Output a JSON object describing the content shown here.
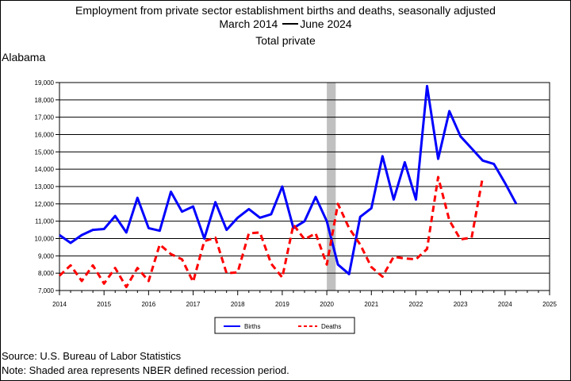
{
  "title": {
    "line1": "Employment from private sector establishment births and deaths, seasonally adjusted",
    "line2_start": "March 2014",
    "line2_end": "June 2024",
    "line3": "Total private"
  },
  "state": "Alabama",
  "footer": {
    "source": "Source: U.S. Bureau of Labor Statistics",
    "note": "Note: Shaded area represents NBER defined recession period."
  },
  "colors": {
    "births": "#0000ff",
    "deaths": "#ff0000",
    "recession": "#c0c0c0"
  },
  "chart_data": {
    "type": "line",
    "xlim": [
      2014,
      2025
    ],
    "ylim": [
      7000,
      19000
    ],
    "x_ticks": [
      "2014",
      "2015",
      "2016",
      "2017",
      "2018",
      "2019",
      "2020",
      "2021",
      "2022",
      "2023",
      "2024",
      "2025"
    ],
    "y_ticks": [
      "7,000",
      "8,000",
      "9,000",
      "10,000",
      "11,000",
      "12,000",
      "13,000",
      "14,000",
      "15,000",
      "16,000",
      "17,000",
      "18,000",
      "19,000"
    ],
    "grid": "horizontal",
    "legend_position": "bottom-center",
    "recession": {
      "start": 2020.0,
      "end": 2020.2
    },
    "series": [
      {
        "name": "Births",
        "style": "solid",
        "x": [
          2014.0,
          2014.25,
          2014.5,
          2014.75,
          2015.0,
          2015.25,
          2015.5,
          2015.75,
          2016.0,
          2016.25,
          2016.5,
          2016.75,
          2017.0,
          2017.25,
          2017.5,
          2017.75,
          2018.0,
          2018.25,
          2018.5,
          2018.75,
          2019.0,
          2019.25,
          2019.5,
          2019.75,
          2020.0,
          2020.25,
          2020.5,
          2020.75,
          2021.0,
          2021.25,
          2021.5,
          2021.75,
          2022.0,
          2022.25,
          2022.5,
          2022.75,
          2023.0,
          2023.25,
          2023.5,
          2023.75,
          2024.0,
          2024.25
        ],
        "y": [
          10200,
          9750,
          10200,
          10500,
          10550,
          11300,
          10350,
          12350,
          10600,
          10450,
          12700,
          11550,
          11850,
          10000,
          12100,
          10500,
          11200,
          11700,
          11200,
          11400,
          13000,
          10600,
          11000,
          12400,
          11000,
          8500,
          7950,
          11250,
          11750,
          14750,
          12250,
          14400,
          12250,
          18800,
          14600,
          17350,
          15900,
          15200,
          14500,
          14300,
          13200,
          12000
        ]
      },
      {
        "name": "Deaths",
        "style": "dashed",
        "x": [
          2014.0,
          2014.25,
          2014.5,
          2014.75,
          2015.0,
          2015.25,
          2015.5,
          2015.75,
          2016.0,
          2016.25,
          2016.5,
          2016.75,
          2017.0,
          2017.25,
          2017.5,
          2017.75,
          2018.0,
          2018.25,
          2018.5,
          2018.75,
          2019.0,
          2019.25,
          2019.5,
          2019.75,
          2020.0,
          2020.25,
          2020.5,
          2020.75,
          2021.0,
          2021.25,
          2021.5,
          2021.75,
          2022.0,
          2022.25,
          2022.5,
          2022.75,
          2023.0,
          2023.25,
          2023.5
        ],
        "y": [
          7850,
          8450,
          7550,
          8450,
          7400,
          8300,
          7200,
          8300,
          7550,
          9650,
          9100,
          8800,
          7500,
          9850,
          10050,
          8000,
          8050,
          10300,
          10350,
          8550,
          7750,
          10800,
          9950,
          10300,
          8500,
          12000,
          10600,
          9650,
          8350,
          7800,
          8950,
          8850,
          8800,
          9400,
          13550,
          11050,
          9950,
          10050,
          13550
        ]
      }
    ]
  }
}
